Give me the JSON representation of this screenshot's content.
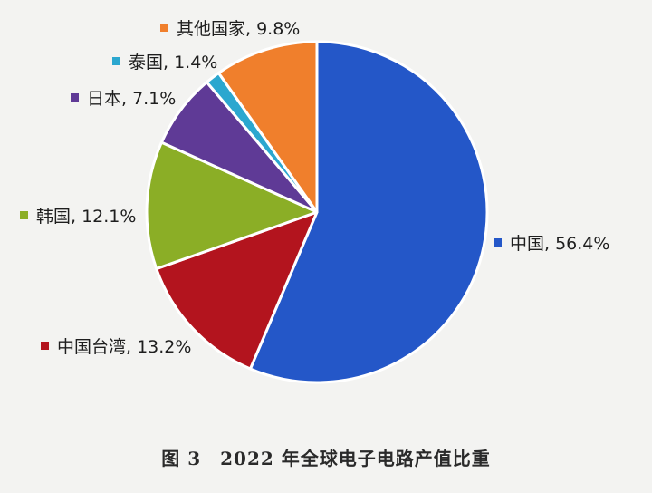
{
  "chart_data": {
    "type": "pie",
    "categories": [
      "中国",
      "中国台湾",
      "韩国",
      "日本",
      "泰国",
      "其他国家"
    ],
    "values": [
      56.4,
      13.2,
      12.1,
      7.1,
      1.4,
      9.8
    ],
    "labels": [
      "中国, 56.4%",
      "中国台湾, 13.2%",
      "韩国, 12.1%",
      "日本, 7.1%",
      "泰国, 1.4%",
      "其他国家, 9.8%"
    ],
    "colors": [
      "#2457c8",
      "#b3141e",
      "#8bae26",
      "#5f3a96",
      "#2ba7cf",
      "#f07f2c"
    ],
    "unit": "%",
    "legend_placement": "around",
    "title": "图 3　2022 年全球电子电路产值比重"
  }
}
